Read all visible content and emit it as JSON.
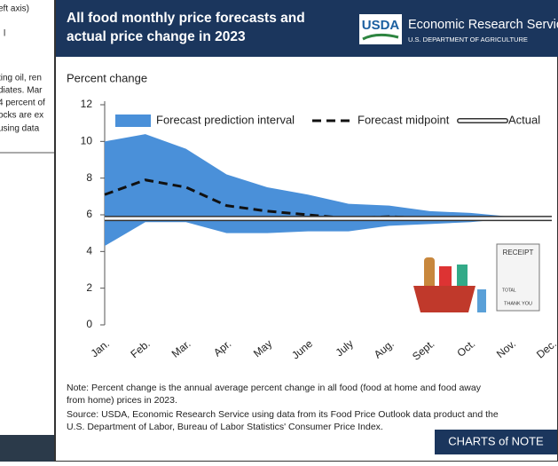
{
  "background_text": [
    "eft axis)",
    "l",
    "ting oil, ren",
    "diates. Mar",
    "4 percent of",
    "ocks are ex",
    "using data"
  ],
  "header": {
    "title_lines": [
      "All food monthly price forecasts and",
      "actual price change in 2023"
    ],
    "logo": "USDA",
    "org": "Economic Research Service",
    "dept": "U.S. DEPARTMENT OF AGRICULTURE"
  },
  "chart_data": {
    "type": "band-line",
    "y_label": "Percent change",
    "categories": [
      "Jan.",
      "Feb.",
      "Mar.",
      "Apr.",
      "May",
      "June",
      "July",
      "Aug.",
      "Sept.",
      "Oct.",
      "Nov.",
      "Dec."
    ],
    "series": [
      {
        "name": "Forecast prediction interval",
        "color": "#4a90d9",
        "upper": [
          10,
          10.4,
          9.6,
          8.2,
          7.5,
          7.1,
          6.6,
          6.5,
          6.2,
          6.1,
          5.9,
          5.8
        ],
        "lower": [
          4.3,
          5.6,
          5.6,
          5.0,
          5.0,
          5.1,
          5.1,
          5.4,
          5.5,
          5.6,
          5.8,
          5.8
        ]
      },
      {
        "name": "Forecast midpoint",
        "color": "#111111",
        "values": [
          7.1,
          7.9,
          7.5,
          6.5,
          6.2,
          6.0,
          5.8,
          5.9,
          5.8,
          5.8,
          5.8,
          5.8
        ]
      },
      {
        "name": "Actual",
        "color": "#333333",
        "values": [
          5.8,
          5.8,
          5.8,
          5.8,
          5.8,
          5.8,
          5.8,
          5.8,
          5.8,
          5.8,
          5.8,
          5.8
        ]
      }
    ],
    "ylim": [
      0,
      12
    ],
    "yticks": [
      0,
      2,
      4,
      6,
      8,
      10,
      12
    ],
    "grid": false,
    "legend": "top",
    "note_lines": [
      "Note: Percent change is the annual average percent change in all food (food at home and food away",
      "from home) prices in 2023."
    ],
    "source_lines": [
      "Source: USDA, Economic Research Service using data from its Food Price Outlook data product and the",
      "U.S. Department of Labor, Bureau of Labor Statistics' Consumer Price Index."
    ]
  },
  "illustration": {
    "receipt_title": "RECEIPT",
    "receipt_total": "TOTAL",
    "receipt_thanks": "THANK YOU"
  },
  "footer": {
    "brand": "CHARTS of NOTE"
  }
}
